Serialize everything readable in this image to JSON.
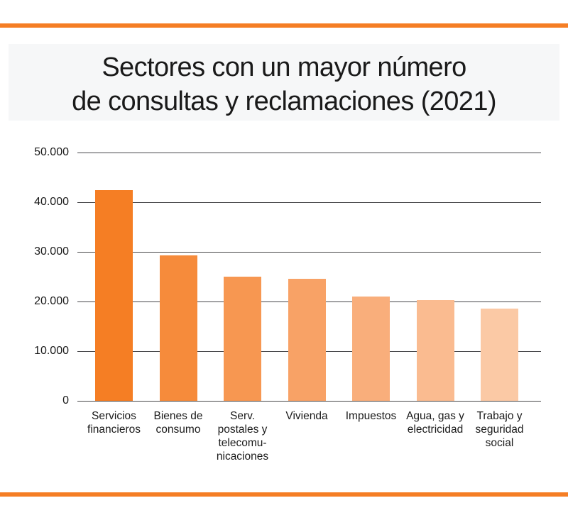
{
  "page": {
    "background_color": "#ffffff",
    "accent_color": "#f57e24",
    "text_color": "#1a1a1a",
    "title_band_color": "#f6f7f8"
  },
  "title": {
    "line1": "Sectores con un mayor número",
    "line2": "de consultas y reclamaciones (2021)",
    "full": "Sectores con un mayor número de consultas y reclamaciones (2021)"
  },
  "chart_data": {
    "type": "bar",
    "title": "Sectores con un mayor número de consultas y reclamaciones (2021)",
    "categories": [
      "Servicios financieros",
      "Bienes de consumo",
      "Serv. postales y telecomunicaciones",
      "Vivienda",
      "Impuestos",
      "Agua, gas y electricidad",
      "Trabajo y seguridad social"
    ],
    "category_label_lines": [
      [
        "Servicios",
        "financieros"
      ],
      [
        "Bienes de",
        "consumo"
      ],
      [
        "Serv.",
        "postales y",
        "telecomu-",
        "nicaciones"
      ],
      [
        "Vivienda"
      ],
      [
        "Impuestos"
      ],
      [
        "Agua, gas y",
        "electricidad"
      ],
      [
        "Trabajo y",
        "seguridad",
        "social"
      ]
    ],
    "values": [
      42400,
      29300,
      25000,
      24600,
      21000,
      20300,
      18600
    ],
    "bar_colors": [
      "#f57e24",
      "#f68b3b",
      "#f79751",
      "#f8a266",
      "#f9ae7b",
      "#fabb90",
      "#fbc9a5"
    ],
    "xlabel": "",
    "ylabel": "",
    "ylim": [
      0,
      50000
    ],
    "ytick_values": [
      0,
      10000,
      20000,
      30000,
      40000,
      50000
    ],
    "ytick_labels": [
      "0",
      "10.000",
      "20.000",
      "30.000",
      "40.000",
      "50.000"
    ],
    "grid": true,
    "legend": false
  }
}
